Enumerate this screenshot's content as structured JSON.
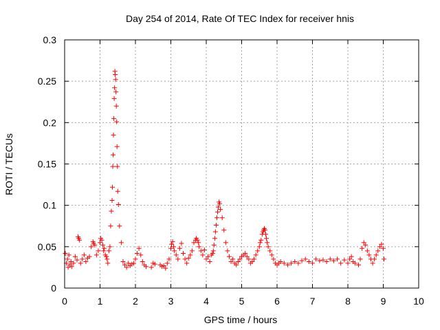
{
  "chart_data": {
    "type": "scatter",
    "title": "Day 254 of 2014, Rate Of TEC Index for receiver hnis",
    "xlabel": "GPS time / hours",
    "ylabel": "ROTI / TECUs",
    "xlim": [
      0,
      10
    ],
    "ylim": [
      0,
      0.3
    ],
    "xticks": [
      0,
      1,
      2,
      3,
      4,
      5,
      6,
      7,
      8,
      9,
      10
    ],
    "yticks": [
      0,
      0.05,
      0.1,
      0.15,
      0.2,
      0.25,
      0.3
    ],
    "xtick_labels": [
      "0",
      "1",
      "2",
      "3",
      "4",
      "5",
      "6",
      "7",
      "8",
      "9",
      "10"
    ],
    "ytick_labels": [
      "0",
      "0.05",
      "0.1",
      "0.15",
      "0.2",
      "0.25",
      "0.3"
    ],
    "grid": true,
    "marker": "+",
    "color": "#ff0000",
    "series": [
      {
        "name": "ROTI",
        "x": [
          0.02,
          0.05,
          0.08,
          0.1,
          0.12,
          0.15,
          0.18,
          0.2,
          0.25,
          0.3,
          0.35,
          0.38,
          0.4,
          0.42,
          0.45,
          0.5,
          0.55,
          0.6,
          0.65,
          0.7,
          0.75,
          0.8,
          0.82,
          0.85,
          0.9,
          0.95,
          1.0,
          1.02,
          1.05,
          1.08,
          1.1,
          1.12,
          1.15,
          1.18,
          1.2,
          1.22,
          1.25,
          1.28,
          1.3,
          1.32,
          1.34,
          1.35,
          1.36,
          1.37,
          1.38,
          1.39,
          1.4,
          1.41,
          1.42,
          1.43,
          1.44,
          1.45,
          1.46,
          1.47,
          1.48,
          1.49,
          1.5,
          1.52,
          1.55,
          1.6,
          1.65,
          1.7,
          1.75,
          1.8,
          1.85,
          1.9,
          1.95,
          2.0,
          2.05,
          2.1,
          2.15,
          2.2,
          2.25,
          2.3,
          2.45,
          2.5,
          2.55,
          2.7,
          2.75,
          2.8,
          2.85,
          2.9,
          2.95,
          3.0,
          3.02,
          3.05,
          3.08,
          3.1,
          3.15,
          3.2,
          3.25,
          3.3,
          3.35,
          3.4,
          3.45,
          3.5,
          3.55,
          3.6,
          3.65,
          3.7,
          3.72,
          3.75,
          3.78,
          3.8,
          3.85,
          3.9,
          3.95,
          4.0,
          4.05,
          4.1,
          4.15,
          4.18,
          4.2,
          4.22,
          4.24,
          4.26,
          4.28,
          4.3,
          4.32,
          4.34,
          4.36,
          4.38,
          4.4,
          4.45,
          4.5,
          4.55,
          4.6,
          4.65,
          4.7,
          4.75,
          4.8,
          4.85,
          4.9,
          4.95,
          5.0,
          5.05,
          5.1,
          5.15,
          5.2,
          5.25,
          5.3,
          5.35,
          5.4,
          5.45,
          5.5,
          5.52,
          5.55,
          5.58,
          5.6,
          5.62,
          5.64,
          5.66,
          5.68,
          5.7,
          5.72,
          5.75,
          5.8,
          5.85,
          5.9,
          5.95,
          6.0,
          6.05,
          6.1,
          6.2,
          6.3,
          6.4,
          6.5,
          6.6,
          6.7,
          6.8,
          6.9,
          7.0,
          7.1,
          7.2,
          7.3,
          7.4,
          7.5,
          7.6,
          7.7,
          7.8,
          7.9,
          8.0,
          8.05,
          8.1,
          8.15,
          8.2,
          8.3,
          8.35,
          8.4,
          8.45,
          8.5,
          8.55,
          8.6,
          8.65,
          8.7,
          8.75,
          8.8,
          8.85,
          8.9,
          8.95,
          9.0,
          9.02
        ],
        "y": [
          0.042,
          0.03,
          0.035,
          0.025,
          0.04,
          0.028,
          0.032,
          0.026,
          0.03,
          0.038,
          0.034,
          0.062,
          0.06,
          0.058,
          0.03,
          0.035,
          0.04,
          0.032,
          0.036,
          0.038,
          0.05,
          0.056,
          0.054,
          0.052,
          0.04,
          0.045,
          0.055,
          0.06,
          0.058,
          0.052,
          0.045,
          0.048,
          0.04,
          0.038,
          0.035,
          0.03,
          0.045,
          0.05,
          0.075,
          0.093,
          0.106,
          0.122,
          0.147,
          0.161,
          0.185,
          0.205,
          0.229,
          0.242,
          0.262,
          0.258,
          0.252,
          0.237,
          0.22,
          0.201,
          0.171,
          0.147,
          0.117,
          0.101,
          0.075,
          0.055,
          0.032,
          0.028,
          0.025,
          0.03,
          0.027,
          0.029,
          0.03,
          0.035,
          0.042,
          0.048,
          0.04,
          0.032,
          0.028,
          0.026,
          0.025,
          0.03,
          0.029,
          0.028,
          0.026,
          0.027,
          0.024,
          0.03,
          0.035,
          0.048,
          0.053,
          0.056,
          0.05,
          0.045,
          0.04,
          0.035,
          0.048,
          0.054,
          0.042,
          0.035,
          0.03,
          0.036,
          0.04,
          0.045,
          0.055,
          0.058,
          0.06,
          0.058,
          0.055,
          0.05,
          0.045,
          0.04,
          0.046,
          0.035,
          0.038,
          0.032,
          0.04,
          0.042,
          0.045,
          0.052,
          0.06,
          0.068,
          0.076,
          0.085,
          0.092,
          0.098,
          0.104,
          0.102,
          0.095,
          0.085,
          0.07,
          0.055,
          0.045,
          0.038,
          0.032,
          0.035,
          0.03,
          0.028,
          0.032,
          0.035,
          0.038,
          0.04,
          0.042,
          0.038,
          0.035,
          0.03,
          0.032,
          0.035,
          0.04,
          0.045,
          0.05,
          0.055,
          0.058,
          0.065,
          0.068,
          0.07,
          0.072,
          0.07,
          0.065,
          0.06,
          0.055,
          0.05,
          0.045,
          0.04,
          0.035,
          0.03,
          0.028,
          0.03,
          0.032,
          0.03,
          0.028,
          0.03,
          0.032,
          0.03,
          0.033,
          0.035,
          0.032,
          0.03,
          0.035,
          0.033,
          0.034,
          0.032,
          0.035,
          0.033,
          0.035,
          0.03,
          0.034,
          0.03,
          0.035,
          0.038,
          0.032,
          0.03,
          0.028,
          0.035,
          0.048,
          0.055,
          0.052,
          0.045,
          0.04,
          0.035,
          0.03,
          0.035,
          0.04,
          0.045,
          0.05,
          0.053,
          0.048,
          0.035
        ]
      }
    ]
  }
}
